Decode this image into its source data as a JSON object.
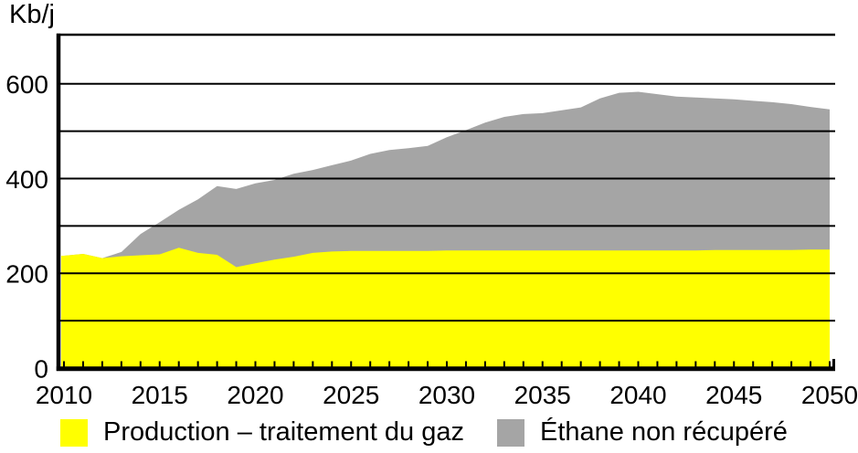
{
  "chart_data": {
    "type": "area",
    "stacked": true,
    "unit_label": "Kb/j",
    "grid": "horizontal",
    "legend_position": "bottom",
    "x": [
      2010,
      2011,
      2012,
      2013,
      2014,
      2015,
      2016,
      2017,
      2018,
      2019,
      2020,
      2021,
      2022,
      2023,
      2024,
      2025,
      2026,
      2027,
      2028,
      2029,
      2030,
      2031,
      2032,
      2033,
      2034,
      2035,
      2036,
      2037,
      2038,
      2039,
      2040,
      2041,
      2042,
      2043,
      2044,
      2045,
      2046,
      2047,
      2048,
      2049,
      2050
    ],
    "x_tick_labels": [
      "2010",
      "2015",
      "2020",
      "2025",
      "2030",
      "2035",
      "2040",
      "2045",
      "2050"
    ],
    "y_axis": {
      "min": 0,
      "max": 700,
      "gridline_step": 100,
      "labeled_ticks": [
        0,
        200,
        400,
        600
      ]
    },
    "series": [
      {
        "name": "Production – traitement du gaz",
        "color": "#ffff00",
        "values": [
          237,
          241,
          232,
          236,
          238,
          240,
          254,
          243,
          239,
          213,
          221,
          229,
          235,
          243,
          246,
          247,
          247,
          247,
          247,
          247,
          248,
          248,
          248,
          248,
          248,
          248,
          248,
          248,
          248,
          248,
          248,
          248,
          248,
          248,
          249,
          249,
          249,
          249,
          249,
          250,
          250
        ]
      },
      {
        "name": "Éthane non récupéré",
        "color": "#a5a5a5",
        "values": [
          0,
          0,
          0,
          9,
          45,
          68,
          80,
          113,
          145,
          165,
          169,
          168,
          175,
          175,
          182,
          191,
          205,
          213,
          217,
          222,
          239,
          254,
          270,
          282,
          288,
          290,
          296,
          302,
          321,
          333,
          335,
          330,
          325,
          323,
          320,
          318,
          315,
          312,
          308,
          301,
          296
        ]
      }
    ],
    "axis_color": "#000000"
  }
}
